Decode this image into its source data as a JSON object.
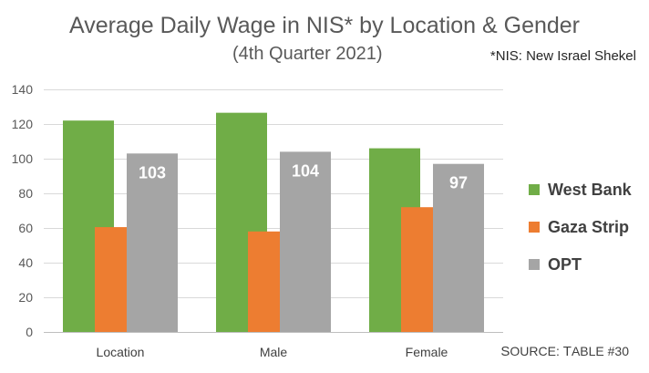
{
  "chart_data": {
    "type": "bar",
    "title": "Average Daily Wage in NIS* by Location & Gender",
    "subtitle": "(4th Quarter 2021)",
    "footnote": "*NIS: New Israel Shekel",
    "source": {
      "prefix": "S",
      "prefix_rest": "OURCE",
      "sep": ": ",
      "t": "T",
      "t_rest": "ABLE",
      "num": " #30"
    },
    "categories": [
      "Location",
      "Male",
      "Female"
    ],
    "ylim": [
      0,
      140
    ],
    "yticks": [
      0,
      20,
      40,
      60,
      80,
      100,
      120,
      140
    ],
    "grid": true,
    "legend_position": "right",
    "series": [
      {
        "name": "West Bank",
        "color": "#70AD47",
        "values": [
          122,
          126.5,
          106
        ],
        "labels": [
          null,
          null,
          null
        ]
      },
      {
        "name": "Gaza Strip",
        "color": "#ED7D31",
        "values": [
          60.5,
          58,
          72
        ],
        "labels": [
          null,
          null,
          null
        ]
      },
      {
        "name": "OPT",
        "color": "#A5A5A5",
        "values": [
          103,
          104,
          97
        ],
        "labels": [
          "103",
          "104",
          "97"
        ]
      }
    ]
  }
}
